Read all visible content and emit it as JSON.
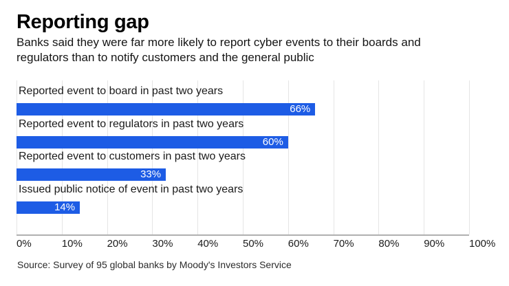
{
  "header": {
    "title": "Reporting gap",
    "subtitle_line1": "Banks said they were far more likely to report cyber events to their boards and",
    "subtitle_line2": "regulators than to notify customers and the general public"
  },
  "chart_data": {
    "type": "bar",
    "orientation": "horizontal",
    "title": "Reporting gap",
    "subtitle": "Banks said they were far more likely to report cyber events to their boards and regulators than to notify customers and the general public",
    "categories": [
      "Reported event to board in past two years",
      "Reported event to regulators in past two years",
      "Reported event to customers in past two years",
      "Issued public notice of event in past two years"
    ],
    "values": [
      66,
      60,
      33,
      14
    ],
    "value_labels": [
      "66%",
      "60%",
      "33%",
      "14%"
    ],
    "xlim": [
      0,
      100
    ],
    "x_ticks": [
      0,
      10,
      20,
      30,
      40,
      50,
      60,
      70,
      80,
      90,
      100
    ],
    "x_tick_labels": [
      "0%",
      "10%",
      "20%",
      "30%",
      "40%",
      "50%",
      "60%",
      "70%",
      "80%",
      "90%",
      "100%"
    ],
    "grid": "vertical-on",
    "legend": "none",
    "colors": {
      "bar": "#1d5ce5",
      "gridline": "#e5e5e5",
      "axis_line": "#b0b0b0",
      "bar_value_text": "#ffffff",
      "text": "#1a1a1a"
    }
  },
  "footer": {
    "source": "Source: Survey of 95 global banks by Moody's Investors Service"
  }
}
